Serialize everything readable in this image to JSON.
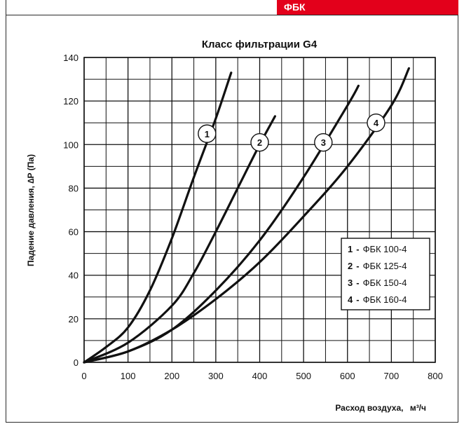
{
  "header": {
    "badge": "ФБК",
    "badge_color": "#e3001b"
  },
  "chart_data": {
    "type": "line",
    "title": "Класс фильтрации G4",
    "xlabel": "Расход воздуха,",
    "xlabel_unit": "м³/ч",
    "ylabel": "Падение давления, ∆P (Па)",
    "xlim": [
      0,
      800
    ],
    "ylim": [
      0,
      140
    ],
    "xticks": [
      0,
      100,
      200,
      300,
      400,
      500,
      600,
      700,
      800
    ],
    "yticks": [
      0,
      20,
      40,
      60,
      80,
      100,
      120,
      140
    ],
    "grid": true,
    "series": [
      {
        "name": "ФБК 100-4",
        "marker": "1",
        "x": [
          0,
          50,
          100,
          150,
          200,
          250,
          300,
          335
        ],
        "y": [
          0,
          7,
          16,
          33,
          57,
          85,
          112,
          133
        ]
      },
      {
        "name": "ФБК 125-4",
        "marker": "2",
        "x": [
          0,
          100,
          200,
          250,
          300,
          350,
          400,
          435
        ],
        "y": [
          0,
          9,
          26,
          41,
          60,
          80,
          100,
          113
        ]
      },
      {
        "name": "ФБК 150-4",
        "marker": "3",
        "x": [
          0,
          100,
          200,
          300,
          400,
          500,
          600,
          625
        ],
        "y": [
          0,
          5,
          15,
          33,
          56,
          85,
          118,
          127
        ]
      },
      {
        "name": "ФБК 160-4",
        "marker": "4",
        "x": [
          0,
          100,
          200,
          300,
          400,
          500,
          600,
          700,
          740
        ],
        "y": [
          0,
          5,
          15,
          29,
          46,
          67,
          90,
          118,
          135
        ]
      }
    ],
    "legend": {
      "placement": "right",
      "items": [
        {
          "num": "1",
          "dash": "-",
          "label": "ФБК 100-4"
        },
        {
          "num": "2",
          "dash": "-",
          "label": "ФБК 125-4"
        },
        {
          "num": "3",
          "dash": "-",
          "label": "ФБК 150-4"
        },
        {
          "num": "4",
          "dash": "-",
          "label": "ФБК 160-4"
        }
      ]
    },
    "markers": [
      {
        "label": "1",
        "x": 280,
        "y": 105
      },
      {
        "label": "2",
        "x": 400,
        "y": 101
      },
      {
        "label": "3",
        "x": 545,
        "y": 101
      },
      {
        "label": "4",
        "x": 665,
        "y": 110
      }
    ]
  }
}
